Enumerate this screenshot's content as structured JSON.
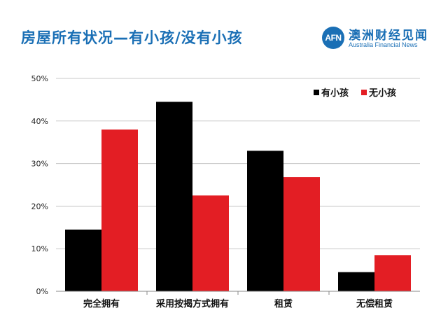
{
  "header": {
    "title": "房屋所有状况—有小孩/没有小孩"
  },
  "brand": {
    "logo_text": "AFN",
    "name": "澳洲财经见闻",
    "subtitle": "Australia Financial News",
    "color": "#1a6fb5"
  },
  "chart_data": {
    "type": "bar",
    "title": "房屋所有状况—有小孩/没有小孩",
    "categories": [
      "完全拥有",
      "采用按揭方式拥有",
      "租赁",
      "无偿租赁"
    ],
    "series": [
      {
        "name": "有小孩",
        "color": "#000000",
        "values": [
          14.5,
          44.5,
          33,
          4.5
        ]
      },
      {
        "name": "无小孩",
        "color": "#e31e24",
        "values": [
          38,
          22.5,
          26.8,
          8.5
        ]
      }
    ],
    "ylim": [
      0,
      50
    ],
    "yticks": [
      0,
      10,
      20,
      30,
      40,
      50
    ],
    "ytick_labels": [
      "0%",
      "10%",
      "20%",
      "30%",
      "40%",
      "50%"
    ],
    "grid": true,
    "legend_position": "top-right",
    "xlabel": "",
    "ylabel": ""
  }
}
